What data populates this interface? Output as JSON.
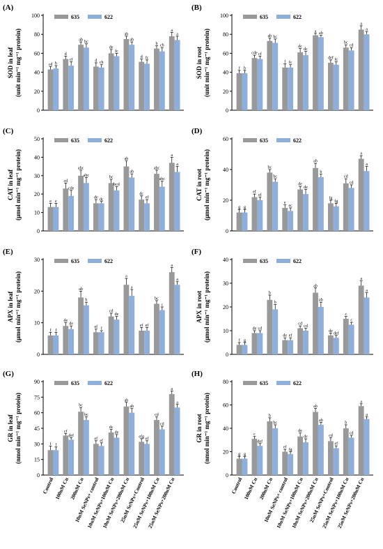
{
  "colors": {
    "series1": "#999999",
    "series2": "#8eaedc"
  },
  "categories": [
    "Control",
    "100uM Cu",
    "200uM Cu",
    "10uM SeNPs+ control",
    "10uM SeNPs+100uM Cu",
    "10uM SeNPs+200uM Cu",
    "25uM SeNPs+Control",
    "25uM SeNPs+100uM Cu",
    "25uM SeNPs+200uM Cu"
  ],
  "chart_data": [
    {
      "type": "bar",
      "panel": "(A)",
      "ylabel_lines": [
        "SOD in leaf",
        "(unit min⁻¹ mg⁻¹ protein)"
      ],
      "ylim": [
        0,
        100
      ],
      "yticks": [
        0,
        20,
        40,
        60,
        80,
        100
      ],
      "series": [
        {
          "name": "635",
          "values": [
            43,
            54,
            69,
            46,
            60,
            75,
            51,
            65,
            78
          ],
          "errors": [
            3,
            3,
            3,
            4,
            4,
            3,
            3,
            3,
            4
          ],
          "labels": [
            "cd",
            "d",
            "ab",
            "d",
            "de",
            "ab",
            "d",
            "b",
            "a"
          ]
        },
        {
          "name": "622",
          "values": [
            44,
            47,
            66,
            45,
            57,
            69,
            49,
            62,
            74
          ],
          "errors": [
            3,
            4,
            4,
            3,
            3,
            3,
            4,
            4,
            4
          ],
          "labels": [
            "b",
            "cf",
            "bc",
            "cb",
            "fc",
            "ab",
            "fc",
            "cb",
            "a"
          ]
        }
      ]
    },
    {
      "type": "bar",
      "panel": "(B)",
      "ylabel_lines": [
        "SOD in root",
        "(unit min⁻¹ mg⁻¹ protein)"
      ],
      "ylim": [
        0,
        100
      ],
      "yticks": [
        0,
        20,
        40,
        60,
        80,
        100
      ],
      "series": [
        {
          "name": "635",
          "values": [
            39,
            55,
            73,
            45,
            61,
            79,
            50,
            66,
            85
          ],
          "errors": [
            3,
            3,
            3,
            4,
            4,
            2,
            3,
            3,
            4
          ],
          "labels": [
            "f",
            "cde",
            "ab",
            "f",
            "dc",
            "a",
            "def",
            "bc",
            "a"
          ]
        },
        {
          "name": "622",
          "values": [
            39,
            54,
            71,
            45,
            58,
            77,
            48,
            63,
            80
          ],
          "errors": [
            3,
            3,
            4,
            3,
            4,
            2,
            3,
            3,
            3
          ],
          "labels": [
            "b",
            "cf",
            "bc",
            "fc",
            "dc",
            "ab",
            "fc",
            "cd",
            "a"
          ]
        }
      ]
    },
    {
      "type": "bar",
      "panel": "(C)",
      "ylabel_lines": [
        "CAT in leaf",
        "(μmol min⁻¹ mg⁻¹ protein)"
      ],
      "ylim": [
        0,
        50
      ],
      "yticks": [
        0,
        10,
        20,
        30,
        40,
        50
      ],
      "series": [
        {
          "name": "635",
          "values": [
            13,
            23,
            30,
            15,
            26,
            35,
            17,
            31,
            37
          ],
          "errors": [
            2,
            3,
            3,
            2,
            2,
            3,
            2,
            2,
            3
          ],
          "labels": [
            "e",
            "cd",
            "abc",
            "de",
            "bc",
            "ab",
            "dc",
            "abc",
            "a"
          ]
        },
        {
          "name": "622",
          "values": [
            13,
            19,
            26,
            15,
            22,
            29,
            15,
            24,
            32
          ],
          "errors": [
            2,
            3,
            3,
            1,
            2,
            2,
            2,
            3,
            3
          ],
          "labels": [
            "e",
            "cde",
            "abc",
            "dc",
            "bcd",
            "ab",
            "ef",
            "abc",
            "a"
          ]
        }
      ]
    },
    {
      "type": "bar",
      "panel": "(D)",
      "ylabel_lines": [
        "CAT in root",
        "(μmol min⁻¹ mg⁻¹ protein)"
      ],
      "ylim": [
        0,
        60
      ],
      "yticks": [
        0,
        20,
        40,
        60
      ],
      "series": [
        {
          "name": "635",
          "values": [
            12,
            22,
            38,
            15,
            27,
            41,
            18,
            31,
            47
          ],
          "errors": [
            2,
            2,
            2,
            2,
            2,
            3,
            2,
            3,
            2
          ],
          "labels": [
            "g",
            "ef",
            "bc",
            "e",
            "de",
            "ab",
            "fg",
            "cd",
            "a"
          ]
        },
        {
          "name": "622",
          "values": [
            12,
            20,
            32,
            13,
            24,
            35,
            16,
            28,
            39
          ],
          "errors": [
            2,
            2,
            2,
            2,
            3,
            2,
            2,
            2,
            3
          ],
          "labels": [
            "g",
            "ef",
            "bc",
            "ec",
            "de",
            "b",
            "fg",
            "cd",
            "a"
          ]
        }
      ]
    },
    {
      "type": "bar",
      "panel": "(E)",
      "ylabel_lines": [
        "APX in leaf",
        "(μmol min⁻¹ mg⁻¹ protein)"
      ],
      "ylim": [
        0,
        30
      ],
      "yticks": [
        0,
        10,
        20,
        30
      ],
      "series": [
        {
          "name": "635",
          "values": [
            6,
            9,
            18,
            7,
            12,
            22,
            7.5,
            16,
            26
          ],
          "errors": [
            1,
            1,
            2,
            1,
            1,
            2,
            1,
            1,
            1.5
          ],
          "labels": [
            "f",
            "de",
            "ab",
            "ef",
            "cd",
            "a",
            "ef",
            "bc",
            "a"
          ]
        },
        {
          "name": "622",
          "values": [
            6,
            8,
            15.5,
            7,
            11,
            18.5,
            7.5,
            14,
            22
          ],
          "errors": [
            1,
            1,
            1,
            0.5,
            1,
            2,
            1,
            1,
            1
          ],
          "labels": [
            "f",
            "de",
            "b",
            "f",
            "de",
            "a",
            "ef",
            "c",
            "a"
          ]
        }
      ]
    },
    {
      "type": "bar",
      "panel": "(F)",
      "ylabel_lines": [
        "APX in root",
        "(μmol min⁻¹ mg⁻¹ protein)"
      ],
      "ylim": [
        0,
        40
      ],
      "yticks": [
        0,
        10,
        20,
        30,
        40
      ],
      "series": [
        {
          "name": "635",
          "values": [
            4,
            9,
            23,
            6,
            11,
            26,
            8,
            15,
            29
          ],
          "errors": [
            1,
            1,
            2,
            1,
            1,
            2,
            1,
            1,
            2
          ],
          "labels": [
            "f",
            "de",
            "b",
            "de",
            "cd",
            "ab",
            "de",
            "c",
            "a"
          ]
        },
        {
          "name": "622",
          "values": [
            4,
            9,
            19,
            6,
            10,
            20,
            7,
            12.5,
            24
          ],
          "errors": [
            1,
            1,
            2,
            1,
            1,
            2,
            1,
            1,
            2
          ],
          "labels": [
            "g",
            "cd",
            "b",
            "ef",
            "cd",
            "ab",
            "def",
            "c",
            "a"
          ]
        }
      ]
    },
    {
      "type": "bar",
      "panel": "(G)",
      "ylabel_lines": [
        "GR in leaf",
        "(nmol min⁻¹ mg⁻¹ protein)"
      ],
      "ylim": [
        0,
        90
      ],
      "yticks": [
        0,
        15,
        30,
        45,
        60,
        75,
        90
      ],
      "series": [
        {
          "name": "635",
          "values": [
            24,
            38,
            61,
            30,
            41,
            66,
            32,
            53,
            78
          ],
          "errors": [
            4,
            2,
            4,
            3,
            3,
            4,
            3,
            3,
            3
          ],
          "labels": [
            "f",
            "cf",
            "bc",
            "ef",
            "dc",
            "ab",
            "efg",
            "cd",
            "a"
          ]
        },
        {
          "name": "622",
          "values": [
            24,
            34,
            53,
            28,
            36,
            60,
            30,
            44,
            65
          ],
          "errors": [
            3,
            2,
            3,
            3,
            3,
            4,
            3,
            3,
            3
          ],
          "labels": [
            "f",
            "def",
            "bc",
            "ef",
            "de",
            "ab",
            "ef",
            "cd",
            "a"
          ]
        }
      ]
    },
    {
      "type": "bar",
      "panel": "(H)",
      "ylabel_lines": [
        "GR in root",
        "(nmol min⁻¹ mg⁻¹ protein)"
      ],
      "ylim": [
        0,
        80
      ],
      "yticks": [
        0,
        20,
        40,
        60,
        80
      ],
      "series": [
        {
          "name": "635",
          "values": [
            14,
            31,
            46,
            20,
            33,
            54,
            29,
            40,
            59
          ],
          "errors": [
            2,
            2,
            3,
            2,
            3,
            3,
            3,
            3,
            2
          ],
          "labels": [
            "g",
            "c",
            "b",
            "ef",
            "de",
            "ab",
            "cd",
            "b",
            "a"
          ]
        },
        {
          "name": "622",
          "values": [
            14,
            25,
            40,
            18,
            28,
            43,
            23,
            32,
            48
          ],
          "errors": [
            2,
            2,
            3,
            2,
            3,
            2,
            2,
            2,
            2
          ],
          "labels": [
            "g",
            "def",
            "bc",
            "fg",
            "de",
            "ab",
            "ef",
            "cd",
            "a"
          ]
        }
      ]
    }
  ]
}
